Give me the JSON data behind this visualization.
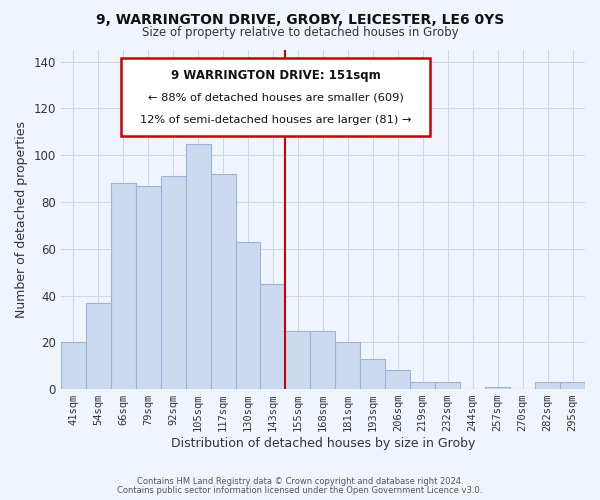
{
  "title": "9, WARRINGTON DRIVE, GROBY, LEICESTER, LE6 0YS",
  "subtitle": "Size of property relative to detached houses in Groby",
  "xlabel": "Distribution of detached houses by size in Groby",
  "ylabel": "Number of detached properties",
  "bar_labels": [
    "41sqm",
    "54sqm",
    "66sqm",
    "79sqm",
    "92sqm",
    "105sqm",
    "117sqm",
    "130sqm",
    "143sqm",
    "155sqm",
    "168sqm",
    "181sqm",
    "193sqm",
    "206sqm",
    "219sqm",
    "232sqm",
    "244sqm",
    "257sqm",
    "270sqm",
    "282sqm",
    "295sqm"
  ],
  "bar_values": [
    20,
    37,
    88,
    87,
    91,
    105,
    92,
    63,
    45,
    25,
    25,
    20,
    13,
    8,
    3,
    3,
    0,
    1,
    0,
    3,
    3
  ],
  "bar_color": "#ccdaf0",
  "bar_edge_color": "#9ab5d8",
  "reference_line_color": "#cc0000",
  "ylim": [
    0,
    145
  ],
  "yticks": [
    0,
    20,
    40,
    60,
    80,
    100,
    120,
    140
  ],
  "annotation_title": "9 WARRINGTON DRIVE: 151sqm",
  "annotation_line1": "← 88% of detached houses are smaller (609)",
  "annotation_line2": "12% of semi-detached houses are larger (81) →",
  "annotation_box_color": "#ffffff",
  "annotation_box_edge_color": "#cc0000",
  "footer_line1": "Contains HM Land Registry data © Crown copyright and database right 2024.",
  "footer_line2": "Contains public sector information licensed under the Open Government Licence v3.0.",
  "grid_color": "#d0d8e8",
  "background_color": "#f0f4fc"
}
